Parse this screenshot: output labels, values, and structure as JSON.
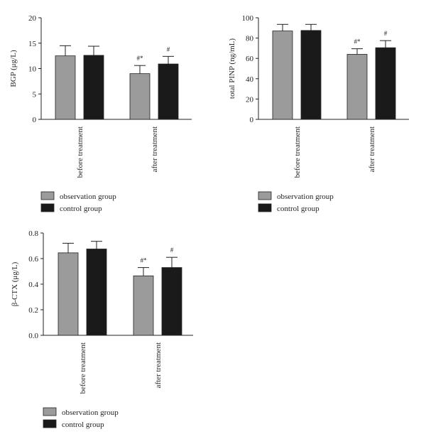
{
  "chart_data": [
    {
      "type": "bar",
      "categories": [
        "before treatment",
        "after treatment"
      ],
      "ylabel": "BGP (μg/L)",
      "ylim": [
        0,
        20
      ],
      "yticks": [
        "0",
        "5",
        "10",
        "15",
        "20"
      ],
      "series": [
        {
          "name": "observation group",
          "color": "#9b9b9b",
          "values": [
            12.5,
            9.0
          ],
          "errors": [
            2.0,
            1.6
          ],
          "annotations": [
            "",
            "#*"
          ]
        },
        {
          "name": "control group",
          "color": "#1a1a1a",
          "values": [
            12.6,
            10.9
          ],
          "errors": [
            1.8,
            1.5
          ],
          "annotations": [
            "",
            "#"
          ]
        }
      ],
      "legend": "bottom-left",
      "grid": false
    },
    {
      "type": "bar",
      "categories": [
        "before treatment",
        "after treatment"
      ],
      "ylabel": "total PINP (ng/mL)",
      "ylim": [
        0,
        100
      ],
      "yticks": [
        "0",
        "20",
        "40",
        "60",
        "80",
        "100"
      ],
      "series": [
        {
          "name": "observation group",
          "color": "#9b9b9b",
          "values": [
            87,
            64
          ],
          "errors": [
            6.5,
            5.5
          ],
          "annotations": [
            "",
            "#*"
          ]
        },
        {
          "name": "control group",
          "color": "#1a1a1a",
          "values": [
            87.5,
            70.5
          ],
          "errors": [
            6.0,
            7.0
          ],
          "annotations": [
            "",
            "#"
          ]
        }
      ],
      "legend": "bottom-left",
      "grid": false
    },
    {
      "type": "bar",
      "categories": [
        "before treatment",
        "after treatment"
      ],
      "ylabel": "β-CTX (μg/L)",
      "ylim": [
        0,
        0.8
      ],
      "yticks": [
        "0.0",
        "0.2",
        "0.4",
        "0.6",
        "0.8"
      ],
      "series": [
        {
          "name": "observation group",
          "color": "#9b9b9b",
          "values": [
            0.645,
            0.465
          ],
          "errors": [
            0.075,
            0.065
          ],
          "annotations": [
            "",
            "#*"
          ]
        },
        {
          "name": "control group",
          "color": "#1a1a1a",
          "values": [
            0.675,
            0.53
          ],
          "errors": [
            0.06,
            0.08
          ],
          "annotations": [
            "",
            "#"
          ]
        }
      ],
      "legend": "bottom-left",
      "grid": false
    }
  ]
}
